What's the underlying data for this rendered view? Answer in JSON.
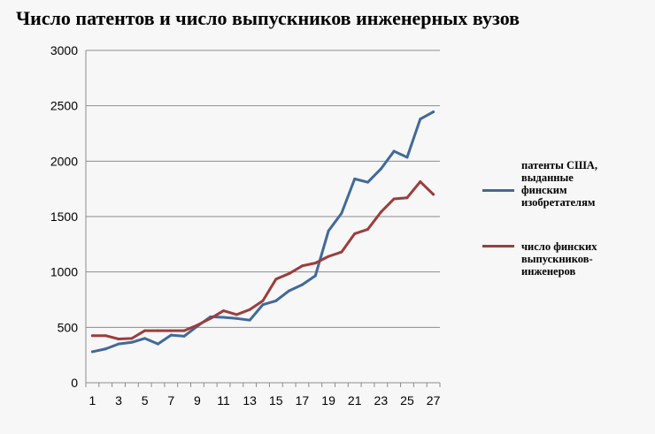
{
  "title": "Число патентов и число выпускников инженерных вузов",
  "chart_data": {
    "type": "line",
    "title": "Число патентов и число выпускников инженерных вузов",
    "xlabel": "",
    "ylabel": "",
    "x": [
      1,
      2,
      3,
      4,
      5,
      6,
      7,
      8,
      9,
      10,
      11,
      12,
      13,
      14,
      15,
      16,
      17,
      18,
      19,
      20,
      21,
      22,
      23,
      24,
      25,
      26,
      27
    ],
    "x_tick_labels": [
      "1",
      "3",
      "5",
      "7",
      "9",
      "11",
      "13",
      "15",
      "17",
      "19",
      "21",
      "23",
      "25",
      "27"
    ],
    "y_tick_labels": [
      "0",
      "500",
      "1000",
      "1500",
      "2000",
      "2500",
      "3000"
    ],
    "ylim": [
      0,
      3000
    ],
    "grid": "horizontal",
    "legend_position": "right",
    "series": [
      {
        "name": "патенты США, выданные финским изобретателям",
        "color": "#41699a",
        "values": [
          280,
          305,
          350,
          365,
          400,
          350,
          430,
          420,
          510,
          595,
          590,
          580,
          565,
          705,
          740,
          830,
          885,
          965,
          1370,
          1530,
          1840,
          1810,
          1930,
          2090,
          2035,
          2380,
          2445
        ]
      },
      {
        "name": "число финских выпускников-инженеров",
        "color": "#9b3d3d",
        "values": [
          425,
          425,
          395,
          400,
          470,
          470,
          470,
          470,
          520,
          580,
          650,
          615,
          660,
          740,
          935,
          985,
          1055,
          1080,
          1140,
          1180,
          1345,
          1385,
          1540,
          1660,
          1670,
          1815,
          1700
        ]
      }
    ]
  }
}
